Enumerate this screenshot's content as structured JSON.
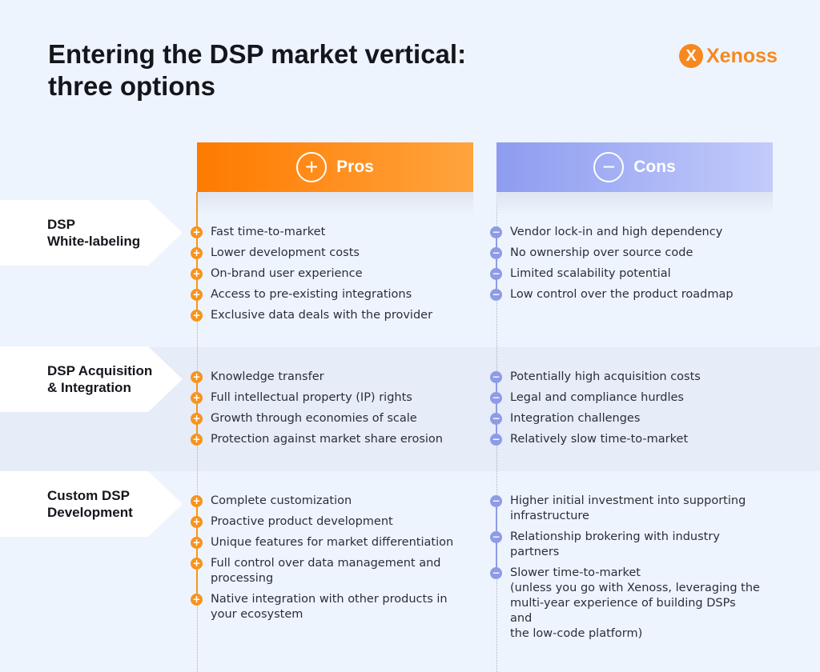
{
  "title": "Entering the DSP market vertical:\nthree options",
  "logo": {
    "text": "Xenoss",
    "mark": "X",
    "color": "#f7881f"
  },
  "headers": {
    "pros": {
      "label": "Pros",
      "icon": "plus-circle-icon",
      "symbol": "+"
    },
    "cons": {
      "label": "Cons",
      "icon": "minus-circle-icon",
      "symbol": "−"
    }
  },
  "colors": {
    "pros": "#ff7a00",
    "cons": "#8d9cf0",
    "background": "#eef4fd"
  },
  "rows": [
    {
      "label": "DSP\nWhite-labeling",
      "pros": [
        "Fast time-to-market",
        "Lower development costs",
        "On-brand user experience",
        "Access to pre-existing integrations",
        "Exclusive data deals with the provider"
      ],
      "cons": [
        "Vendor lock-in and high dependency",
        "No ownership over source code",
        "Limited scalability potential",
        "Low control over the product roadmap"
      ]
    },
    {
      "label": "DSP Acquisition\n& Integration",
      "pros": [
        "Knowledge transfer",
        "Full intellectual property (IP) rights",
        "Growth through economies of scale",
        "Protection against market share erosion"
      ],
      "cons": [
        "Potentially high acquisition costs",
        "Legal and compliance hurdles",
        "Integration challenges",
        "Relatively slow time-to-market"
      ]
    },
    {
      "label": "Custom DSP\nDevelopment",
      "pros": [
        "Complete customization",
        "Proactive product development",
        "Unique features for market differentiation",
        "Full control over data management and\nprocessing",
        "Native integration with other products in\nyour ecosystem"
      ],
      "cons": [
        "Higher initial investment into supporting\ninfrastructure",
        "Relationship brokering with industry\npartners",
        "Slower time-to-market\n(unless you go with Xenoss, leveraging the\nmulti-year experience of building DSPs and\nthe low-code platform)"
      ]
    }
  ]
}
